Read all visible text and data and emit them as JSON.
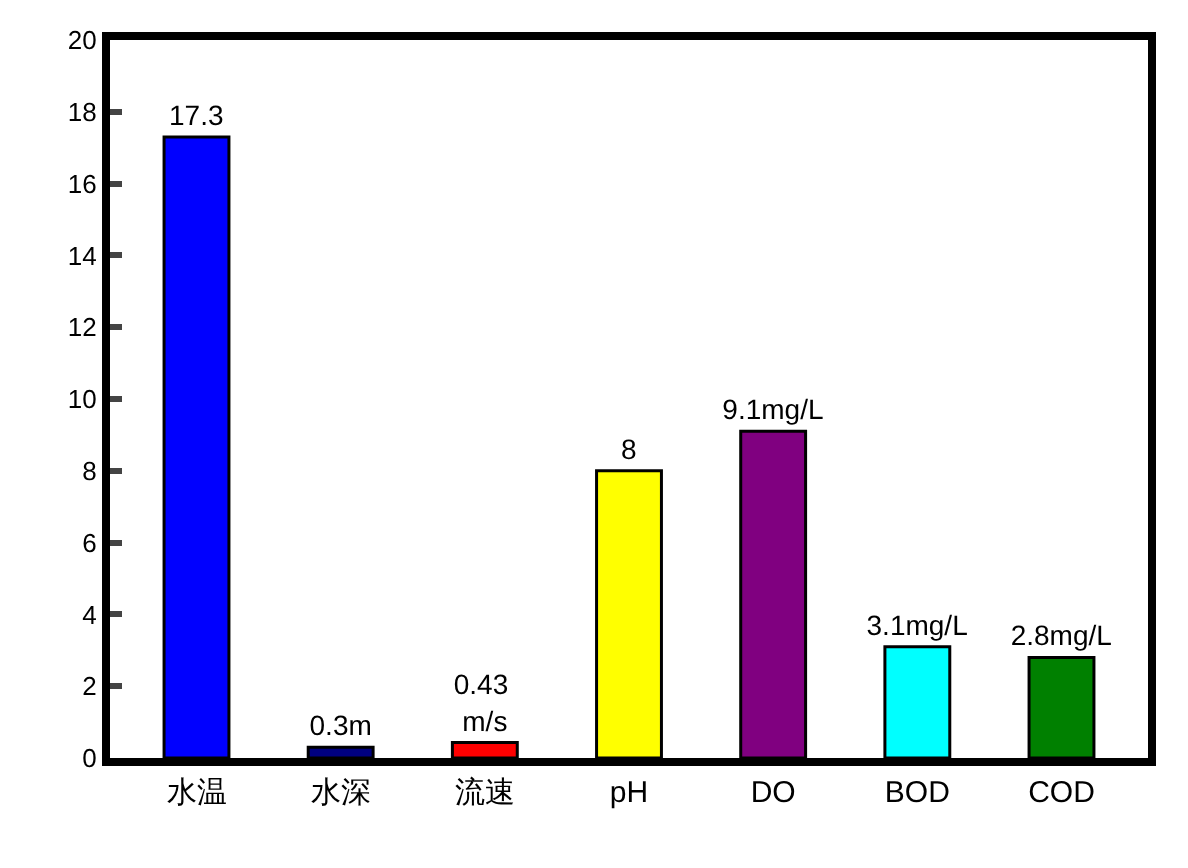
{
  "chart_data": {
    "type": "bar",
    "categories": [
      "水温",
      "水深",
      "流速",
      "pH",
      "DO",
      "BOD",
      "COD"
    ],
    "values": [
      17.3,
      0.3,
      0.43,
      8,
      9.1,
      3.1,
      2.8
    ],
    "colors": [
      "#0000ff",
      "#000080",
      "#ff0000",
      "#ffff00",
      "#800080",
      "#00ffff",
      "#008000"
    ],
    "value_labels": [
      "17.3",
      "0.3m",
      "0.43 m/s",
      "8",
      "9.1mg/L",
      "3.1mg/L",
      "2.8mg/L"
    ],
    "ylim": [
      0,
      20
    ],
    "yticks": [
      0,
      2,
      4,
      6,
      8,
      10,
      12,
      14,
      16,
      18,
      20
    ]
  }
}
